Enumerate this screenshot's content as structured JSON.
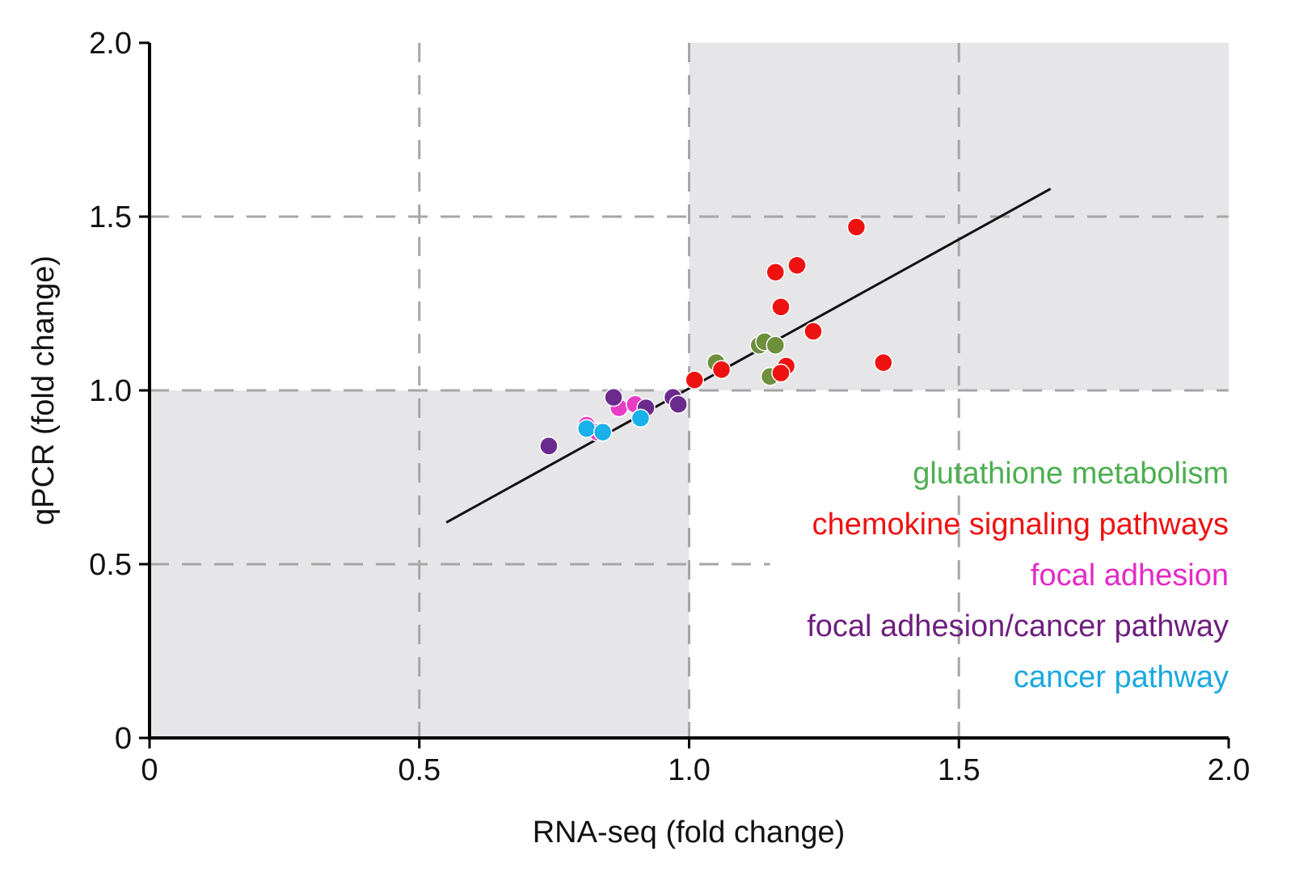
{
  "chart_data": {
    "type": "scatter",
    "xlabel": "RNA-seq (fold change)",
    "ylabel": "qPCR (fold change)",
    "xlim": [
      0,
      2.0
    ],
    "ylim": [
      0,
      2.0
    ],
    "x_ticks": [
      "0",
      "0.5",
      "1.0",
      "1.5",
      "2.0"
    ],
    "y_ticks": [
      "0",
      "0.5",
      "1.0",
      "1.5",
      "2.0"
    ],
    "grid": "dashed",
    "shaded_regions": [
      {
        "x": [
          0,
          1.0
        ],
        "y": [
          0,
          1.0
        ],
        "color": "#e6e6e8"
      },
      {
        "x": [
          1.0,
          2.0
        ],
        "y": [
          1.0,
          2.0
        ],
        "color": "#e6e6e8"
      }
    ],
    "regression_line": {
      "x": [
        0.55,
        1.67
      ],
      "y": [
        0.62,
        1.58
      ],
      "color": "#111111"
    },
    "legend_position": "bottom-right",
    "series": [
      {
        "name": "glutathione metabolism",
        "color": "#6e8f3c",
        "label_color": "#4caf50",
        "points": [
          {
            "x": 1.05,
            "y": 1.08
          },
          {
            "x": 1.13,
            "y": 1.13
          },
          {
            "x": 1.14,
            "y": 1.14
          },
          {
            "x": 1.16,
            "y": 1.13
          },
          {
            "x": 1.15,
            "y": 1.04
          }
        ]
      },
      {
        "name": "chemokine signaling pathways",
        "color": "#ee1111",
        "label_color": "#ee1111",
        "points": [
          {
            "x": 1.31,
            "y": 1.47
          },
          {
            "x": 1.2,
            "y": 1.36
          },
          {
            "x": 1.16,
            "y": 1.34
          },
          {
            "x": 1.17,
            "y": 1.24
          },
          {
            "x": 1.23,
            "y": 1.17
          },
          {
            "x": 1.36,
            "y": 1.08
          },
          {
            "x": 1.18,
            "y": 1.07
          },
          {
            "x": 1.17,
            "y": 1.05
          },
          {
            "x": 1.06,
            "y": 1.06
          },
          {
            "x": 1.01,
            "y": 1.03
          }
        ]
      },
      {
        "name": "focal adhesion",
        "color": "#e83cc4",
        "label_color": "#e42ac6",
        "points": [
          {
            "x": 0.87,
            "y": 0.95
          },
          {
            "x": 0.9,
            "y": 0.96
          },
          {
            "x": 0.81,
            "y": 0.9
          },
          {
            "x": 0.83,
            "y": 0.88
          }
        ]
      },
      {
        "name": "focal adhesion/cancer pathway",
        "color": "#6b2a8e",
        "label_color": "#6e1f7f",
        "points": [
          {
            "x": 0.74,
            "y": 0.84
          },
          {
            "x": 0.86,
            "y": 0.98
          },
          {
            "x": 0.92,
            "y": 0.95
          },
          {
            "x": 0.97,
            "y": 0.98
          },
          {
            "x": 0.98,
            "y": 0.96
          }
        ]
      },
      {
        "name": "cancer pathway",
        "color": "#1ab0ea",
        "label_color": "#1aa8e0",
        "points": [
          {
            "x": 0.81,
            "y": 0.89
          },
          {
            "x": 0.84,
            "y": 0.88
          },
          {
            "x": 0.91,
            "y": 0.92
          }
        ]
      }
    ]
  }
}
